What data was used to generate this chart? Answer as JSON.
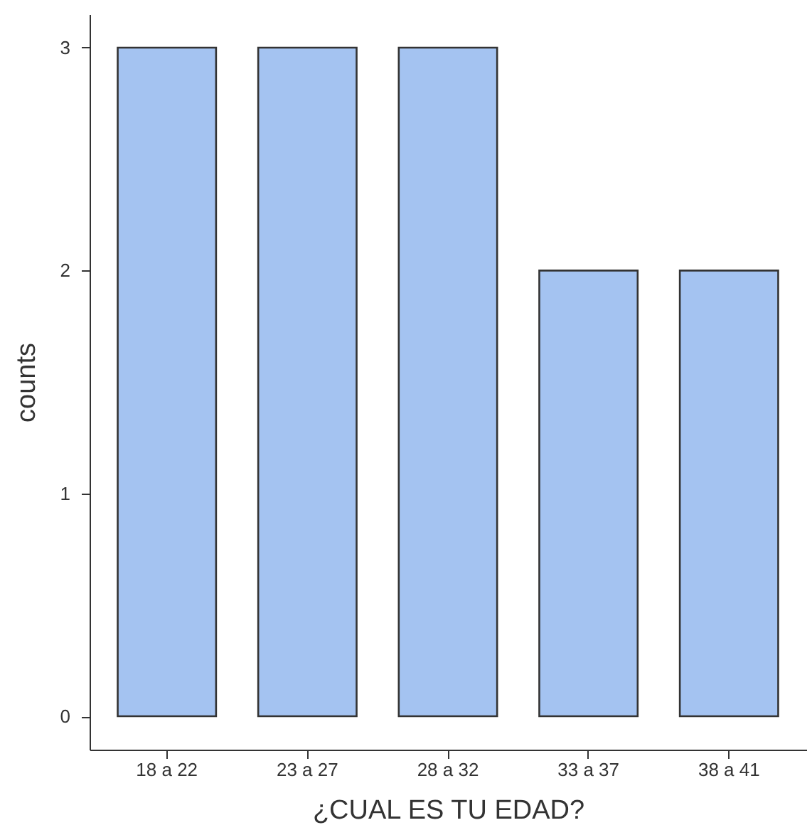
{
  "chart_data": {
    "type": "bar",
    "xlabel": "¿CUAL ES TU EDAD?",
    "ylabel": "counts",
    "categories": [
      "18 a 22",
      "23 a 27",
      "28 a 32",
      "33 a 37",
      "38 a 41"
    ],
    "values": [
      3,
      3,
      3,
      2,
      2
    ],
    "color": "#a4c3f1",
    "ylim": [
      -0.15,
      3.15
    ],
    "yticks": [
      0,
      1,
      2,
      3
    ],
    "grid": false
  }
}
